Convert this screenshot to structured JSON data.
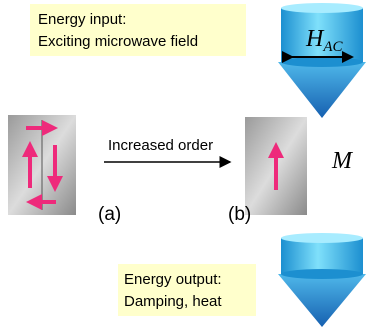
{
  "input": {
    "title": "Energy input:",
    "subtitle": "Exciting microwave field"
  },
  "field_label": {
    "symbol": "H",
    "subscript": "AC"
  },
  "transition": {
    "label": "Increased order"
  },
  "panels": [
    {
      "label": "(a)"
    },
    {
      "label": "(b)"
    }
  ],
  "magnetization": "M",
  "output": {
    "title": "Energy output:",
    "subtitle": "Damping, heat"
  }
}
